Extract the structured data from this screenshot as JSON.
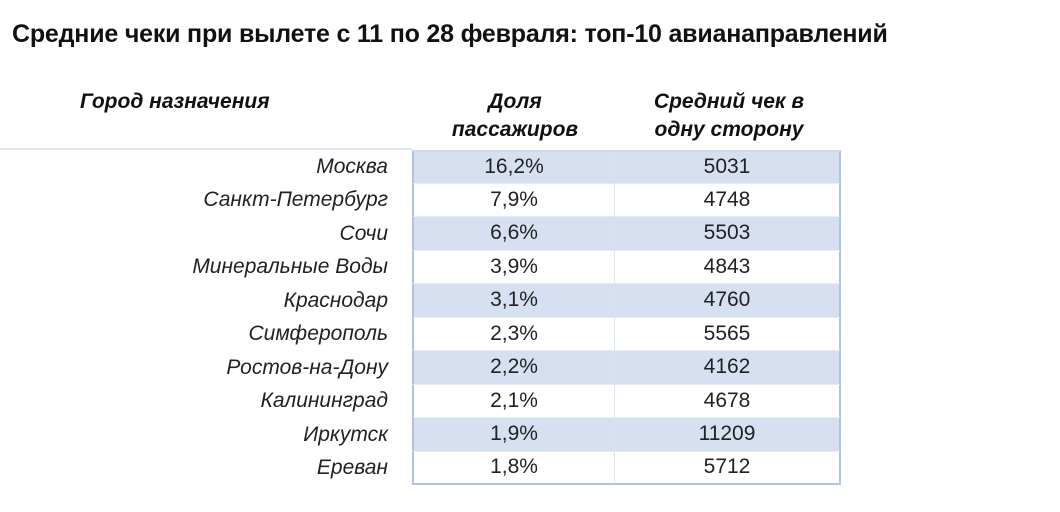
{
  "title": "Средние чеки при вылете с 11 по 28 февраля: топ-10 авианаправлений",
  "table": {
    "headers": {
      "city": "Город назначения",
      "share_line1": "Доля",
      "share_line2": "пассажиров",
      "check_line1": "Средний чек в",
      "check_line2": "одну сторону"
    },
    "rows": [
      {
        "city": "Москва",
        "share": "16,2%",
        "check": "5031"
      },
      {
        "city": "Санкт-Петербург",
        "share": "7,9%",
        "check": "4748"
      },
      {
        "city": "Сочи",
        "share": "6,6%",
        "check": "5503"
      },
      {
        "city": "Минеральные Воды",
        "share": "3,9%",
        "check": "4843"
      },
      {
        "city": "Краснодар",
        "share": "3,1%",
        "check": "4760"
      },
      {
        "city": "Симферополь",
        "share": "2,3%",
        "check": "5565"
      },
      {
        "city": "Ростов-на-Дону",
        "share": "2,2%",
        "check": "4162"
      },
      {
        "city": "Калининград",
        "share": "2,1%",
        "check": "4678"
      },
      {
        "city": "Иркутск",
        "share": "1,9%",
        "check": "11209"
      },
      {
        "city": "Ереван",
        "share": "1,8%",
        "check": "5712"
      }
    ]
  },
  "colors": {
    "row_shade": "#d6e0f1",
    "border": "#aec2e4"
  }
}
